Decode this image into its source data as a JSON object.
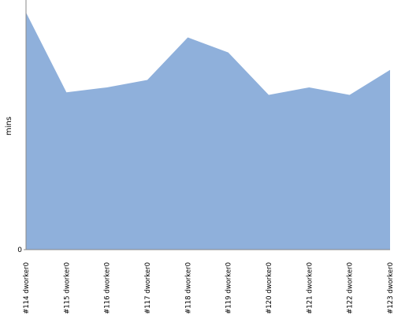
{
  "chart_data": {
    "type": "area",
    "y_label": "mins",
    "categories": [
      "#114 dworker0",
      "#115 dworker0",
      "#116 dworker0",
      "#117 dworker0",
      "#118 dworker0",
      "#119 dworker0",
      "#120 dworker0",
      "#121 dworker0",
      "#122 dworker0",
      "#123 dworker0"
    ],
    "values": [
      95,
      63,
      65,
      68,
      85,
      79,
      62,
      65,
      62,
      72
    ],
    "color": "#8fb0db",
    "ylim": [
      0,
      100
    ],
    "yticks": [
      0
    ]
  }
}
